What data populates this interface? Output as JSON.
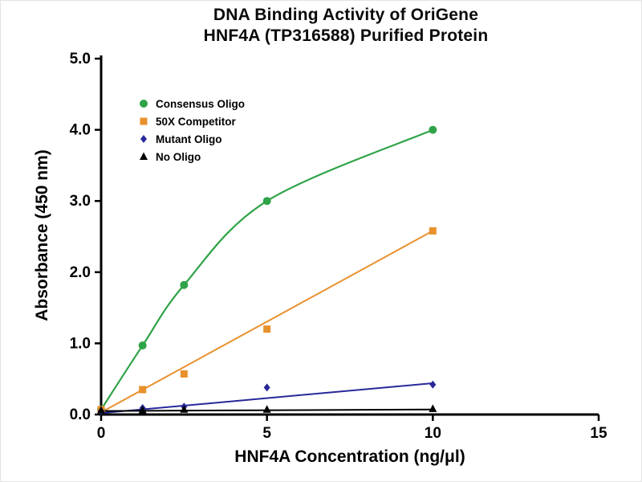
{
  "page": {
    "background": "#ffffff"
  },
  "chart_data": {
    "type": "line",
    "title_lines": [
      "DNA Binding Activity of OriGene",
      "HNF4A (TP316588) Purified Protein"
    ],
    "xlabel": "HNF4A Concentration (ng/μl)",
    "ylabel": "Absorbance (450 nm)",
    "xlim": [
      0,
      15
    ],
    "ylim": [
      0,
      5
    ],
    "xticks": [
      "0",
      "5",
      "10",
      "15"
    ],
    "yticks": [
      "0.0",
      "1.0",
      "2.0",
      "3.0",
      "4.0",
      "5.0"
    ],
    "grid": false,
    "legend_position": "top-left",
    "axis_color": "#000000",
    "series": [
      {
        "name": "Consensus Oligo",
        "color": "#2fa348",
        "marker": "circle",
        "fit": "smooth",
        "x": [
          0,
          1.25,
          2.5,
          5,
          10
        ],
        "y": [
          0.07,
          0.97,
          1.82,
          3.0,
          4.0
        ]
      },
      {
        "name": "50X Competitor",
        "color": "#e8912d",
        "marker": "square",
        "fit": "linear",
        "x": [
          0,
          1.25,
          2.5,
          5,
          10
        ],
        "y": [
          0.07,
          0.35,
          0.57,
          1.2,
          2.58
        ],
        "fit_line": {
          "x": [
            0,
            10
          ],
          "y": [
            0.03,
            2.58
          ]
        }
      },
      {
        "name": "Mutant Oligo",
        "color": "#28289b",
        "marker": "diamond",
        "fit": "linear",
        "x": [
          0,
          1.25,
          2.5,
          5,
          10
        ],
        "y": [
          0.05,
          0.09,
          0.11,
          0.38,
          0.42
        ],
        "fit_line": {
          "x": [
            0,
            10
          ],
          "y": [
            0.02,
            0.44
          ]
        }
      },
      {
        "name": "No Oligo",
        "color": "#000000",
        "marker": "triangle",
        "fit": "linear",
        "x": [
          0,
          1.25,
          2.5,
          5,
          10
        ],
        "y": [
          0.06,
          0.06,
          0.07,
          0.07,
          0.08
        ],
        "fit_line": {
          "x": [
            0,
            10
          ],
          "y": [
            0.05,
            0.07
          ]
        }
      }
    ]
  }
}
